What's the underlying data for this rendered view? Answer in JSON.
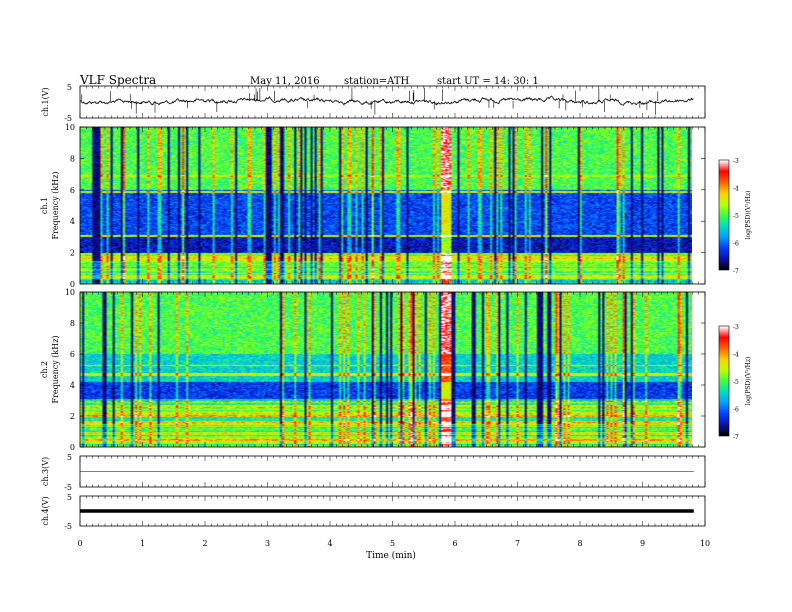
{
  "header": {
    "title": "VLF  Spectra",
    "date": "May 11, 2016",
    "station": "station=ATH",
    "start": "start  UT  =    14: 30: 1"
  },
  "chart_data": [
    {
      "type": "line",
      "id": "ch1",
      "ylabel": "ch.1(V)",
      "ylim": [
        -5,
        5
      ],
      "yticks": [
        "5",
        "-5"
      ],
      "xlim": [
        0,
        10
      ],
      "baseline": 0,
      "description_free": true
    },
    {
      "type": "heatmap",
      "id": "ch1_spec",
      "ylabel": "Frequency  (kHz)",
      "channel_label": "ch.1",
      "ylim": [
        0,
        10
      ],
      "yticks": [
        0,
        2,
        4,
        6,
        8,
        10
      ],
      "xlim": [
        0,
        9.8
      ],
      "colorbar": {
        "label": "log(PSD)(V²/Hz)",
        "ticks": [
          -3,
          -4,
          -5,
          -6,
          -7
        ]
      }
    },
    {
      "type": "heatmap",
      "id": "ch2_spec",
      "ylabel": "Frequency  (kHz)",
      "channel_label": "ch.2",
      "ylim": [
        0,
        10
      ],
      "yticks": [
        0,
        2,
        4,
        6,
        8,
        10
      ],
      "xlim": [
        0,
        9.8
      ],
      "colorbar": {
        "label": "log(PSD)(V²/Hz)",
        "ticks": [
          -3,
          -4,
          -5,
          -6,
          -7
        ]
      }
    },
    {
      "type": "line",
      "id": "ch3",
      "ylabel": "ch.3(V)",
      "ylim": [
        -5,
        5
      ],
      "yticks": [
        "5",
        "-5"
      ],
      "xlim": [
        0,
        10
      ],
      "baseline": 0
    },
    {
      "type": "line",
      "id": "ch4",
      "ylabel": "ch.4(V)",
      "ylim": [
        -5,
        5
      ],
      "yticks": [
        "5",
        "-5"
      ],
      "xlim": [
        0,
        10
      ],
      "baseline": 0
    }
  ],
  "xaxis": {
    "label": "Time  (min)",
    "ticks": [
      "0",
      "1",
      "2",
      "3",
      "4",
      "5",
      "6",
      "7",
      "8",
      "9",
      "10"
    ]
  },
  "colormap": [
    "#000000",
    "#1010b0",
    "#0040ff",
    "#00a0ff",
    "#00e0c0",
    "#40ff40",
    "#c0ff00",
    "#ffd000",
    "#ff6000",
    "#ff0000",
    "#ffffff"
  ]
}
